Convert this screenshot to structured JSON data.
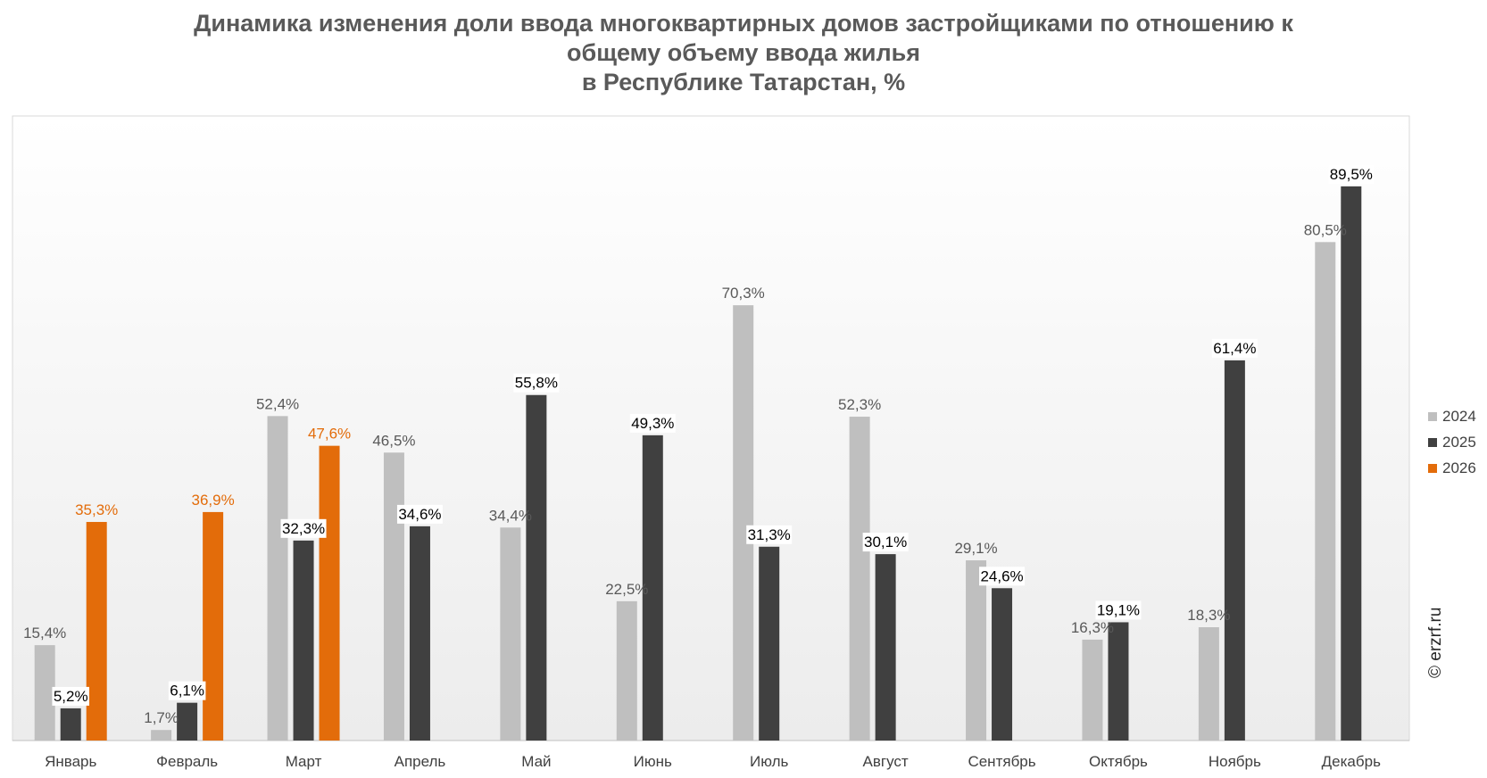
{
  "title": {
    "line1": "Динамика изменения доли ввода многоквартирных домов застройщиками по отношению к",
    "line2": "общему объему ввода жилья",
    "line3": "в Республике Татарстан, %"
  },
  "watermark": "© erzrf.ru",
  "colors": {
    "2024": "#BFBFBF",
    "2025": "#404040",
    "2026": "#E36C0A"
  },
  "chart_data": {
    "type": "bar",
    "title": "Динамика изменения доли ввода многоквартирных домов застройщиками по отношению к общему объему ввода жилья в Республике Татарстан, %",
    "categories": [
      "Январь",
      "Февраль",
      "Март",
      "Апрель",
      "Май",
      "Июнь",
      "Июль",
      "Август",
      "Сентябрь",
      "Октябрь",
      "Ноябрь",
      "Декабрь"
    ],
    "series": [
      {
        "name": "2024",
        "values": [
          15.4,
          1.7,
          52.4,
          46.5,
          34.4,
          22.5,
          70.3,
          52.3,
          29.1,
          16.3,
          18.3,
          80.5
        ],
        "labels": [
          "15,4%",
          "1,7%",
          "52,4%",
          "46,5%",
          "34,4%",
          "22,5%",
          "70,3%",
          "52,3%",
          "29,1%",
          "16,3%",
          "18,3%",
          "80,5%"
        ]
      },
      {
        "name": "2025",
        "values": [
          5.2,
          6.1,
          32.3,
          34.6,
          55.8,
          49.3,
          31.3,
          30.1,
          24.6,
          19.1,
          61.4,
          89.5
        ],
        "labels": [
          "5,2%",
          "6,1%",
          "32,3%",
          "34,6%",
          "55,8%",
          "49,3%",
          "31,3%",
          "30,1%",
          "24,6%",
          "19,1%",
          "61,4%",
          "89,5%"
        ]
      },
      {
        "name": "2026",
        "values": [
          35.3,
          36.9,
          47.6,
          null,
          null,
          null,
          null,
          null,
          null,
          null,
          null,
          null
        ],
        "labels": [
          "35,3%",
          "36,9%",
          "47,6%",
          null,
          null,
          null,
          null,
          null,
          null,
          null,
          null,
          null
        ]
      }
    ],
    "xlabel": "",
    "ylabel": "",
    "ylim": [
      0,
      100
    ],
    "grid": false,
    "legend": "right"
  }
}
